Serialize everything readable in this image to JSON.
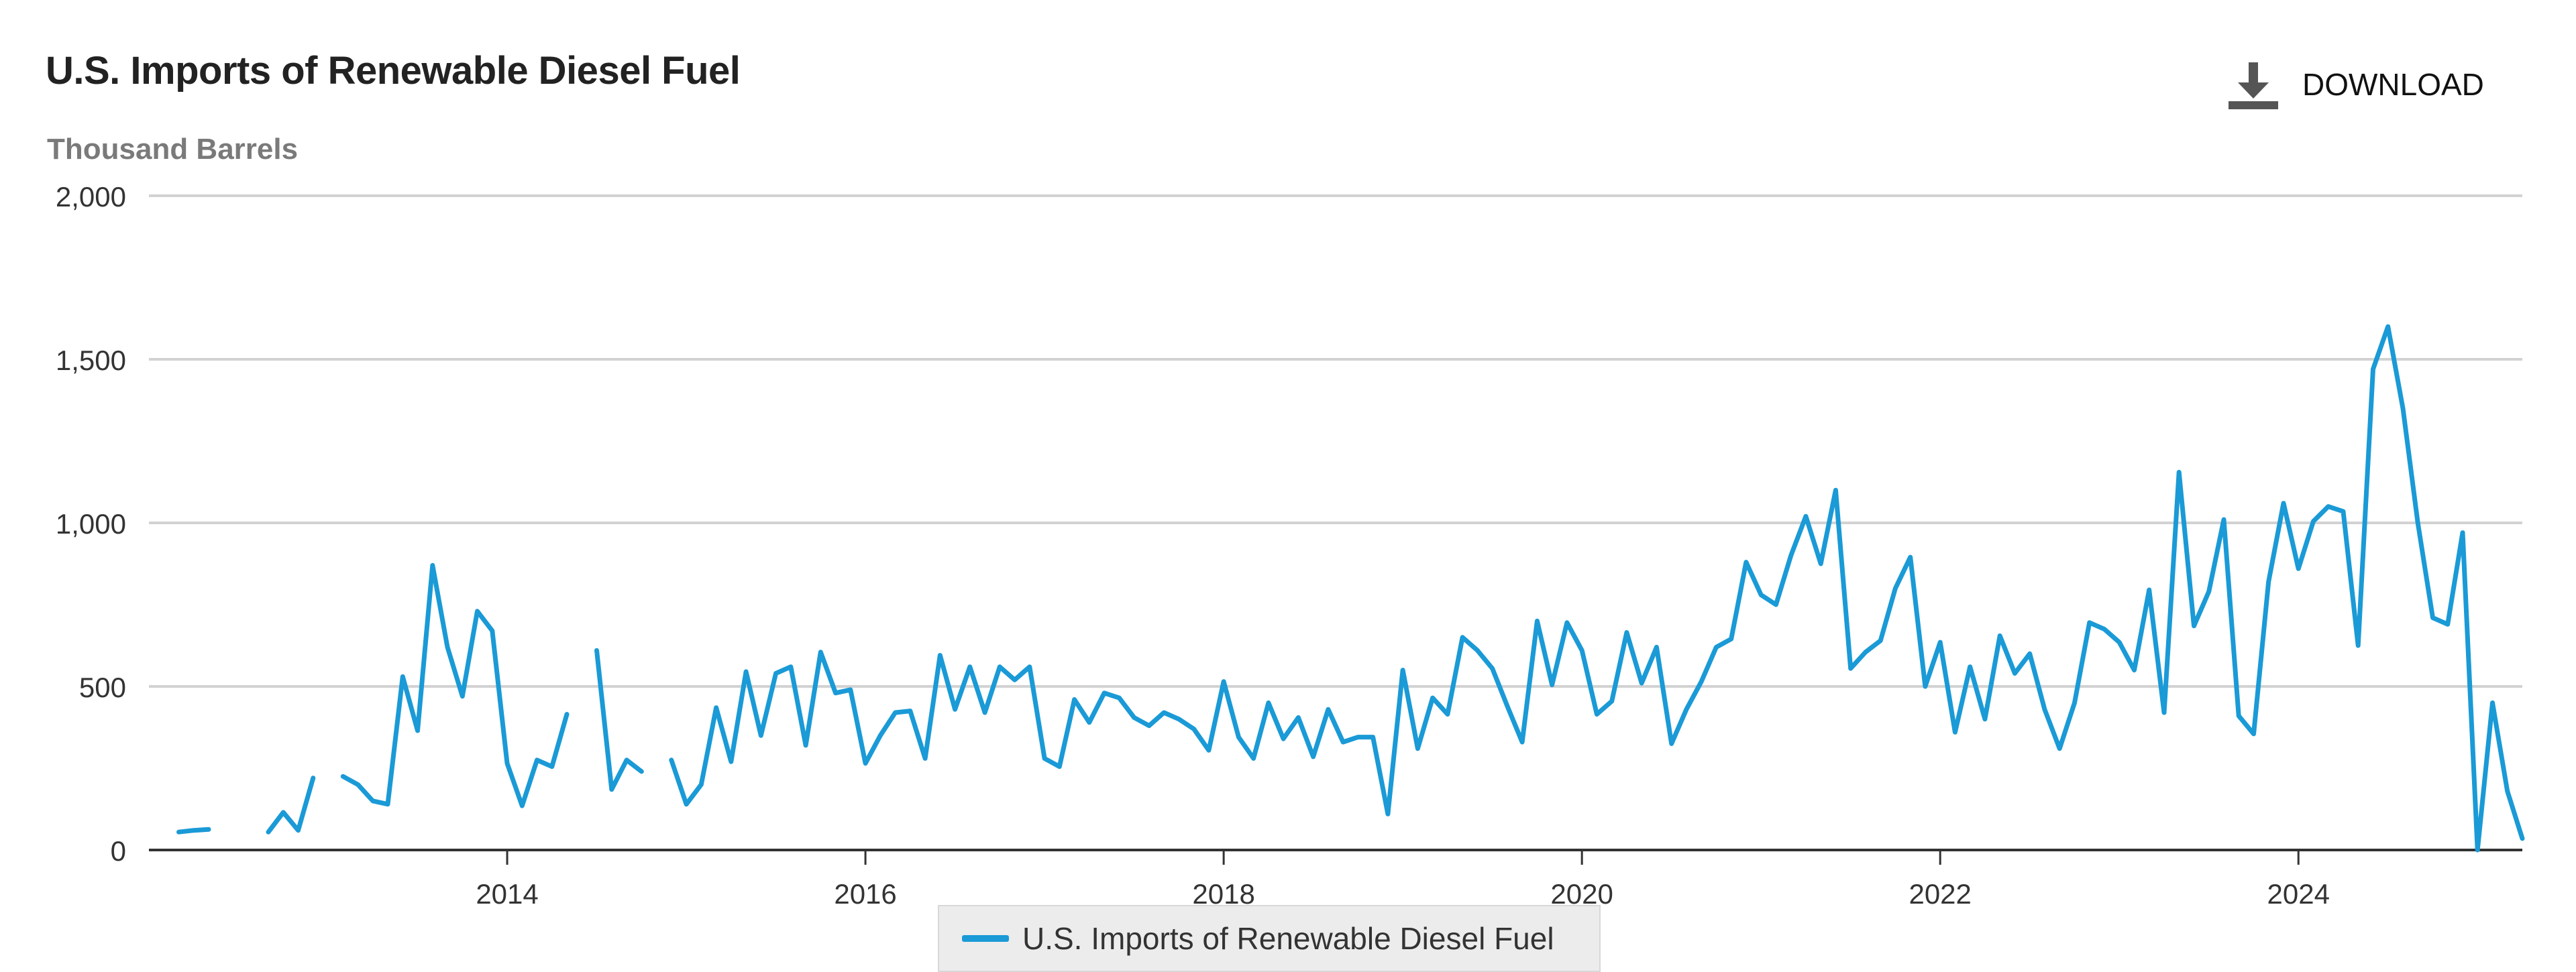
{
  "header": {
    "title": "U.S. Imports of Renewable Diesel Fuel",
    "units": "Thousand Barrels",
    "download_label": "DOWNLOAD",
    "download_icon": "download-icon"
  },
  "legend": {
    "label": "U.S. Imports of Renewable Diesel Fuel"
  },
  "colors": {
    "series": "#1a9ad6",
    "grid": "#d2d2d2",
    "axis": "#333333",
    "legend_bg": "#ececec"
  },
  "chart_data": {
    "type": "line",
    "title": "U.S. Imports of Renewable Diesel Fuel",
    "ylabel": "Thousand Barrels",
    "xlabel": "",
    "ylim": [
      0,
      2000
    ],
    "xlim": [
      "2012-01",
      "2025-04"
    ],
    "y_ticks": [
      0,
      500,
      1000,
      1500,
      2000
    ],
    "y_tick_labels": [
      "0",
      "500",
      "1,000",
      "1,500",
      "2,000"
    ],
    "x_ticks": [
      "2014-01",
      "2016-01",
      "2018-01",
      "2020-01",
      "2022-01",
      "2024-01"
    ],
    "x_tick_labels": [
      "2014",
      "2016",
      "2018",
      "2020",
      "2022",
      "2024"
    ],
    "grid": true,
    "legend_position": "bottom-center",
    "series": [
      {
        "name": "U.S. Imports of Renewable Diesel Fuel",
        "color": "#1a9ad6",
        "start": "2012-03",
        "values": [
          55,
          60,
          63,
          null,
          null,
          null,
          55,
          115,
          60,
          220,
          null,
          225,
          200,
          150,
          140,
          530,
          365,
          870,
          620,
          470,
          730,
          670,
          265,
          135,
          275,
          255,
          415,
          null,
          610,
          185,
          275,
          240,
          null,
          275,
          140,
          200,
          435,
          270,
          545,
          350,
          540,
          560,
          320,
          605,
          480,
          490,
          265,
          350,
          420,
          425,
          280,
          595,
          430,
          560,
          420,
          560,
          520,
          560,
          280,
          255,
          460,
          390,
          480,
          465,
          405,
          380,
          420,
          400,
          370,
          305,
          515,
          345,
          280,
          450,
          340,
          405,
          285,
          430,
          330,
          345,
          345,
          110,
          550,
          310,
          465,
          415,
          650,
          610,
          555,
          440,
          330,
          700,
          505,
          695,
          610,
          415,
          455,
          665,
          510,
          620,
          325,
          430,
          515,
          620,
          645,
          880,
          780,
          750,
          900,
          1020,
          875,
          1100,
          555,
          605,
          640,
          800,
          895,
          500,
          635,
          360,
          560,
          400,
          655,
          540,
          600,
          430,
          310,
          450,
          695,
          675,
          635,
          550,
          795,
          420,
          1155,
          685,
          790,
          1010,
          410,
          355,
          820,
          1060,
          860,
          1005,
          1050,
          1035,
          625,
          1470,
          1600,
          1350,
          1000,
          710,
          690,
          970,
          0,
          450,
          180,
          35
        ]
      }
    ]
  }
}
